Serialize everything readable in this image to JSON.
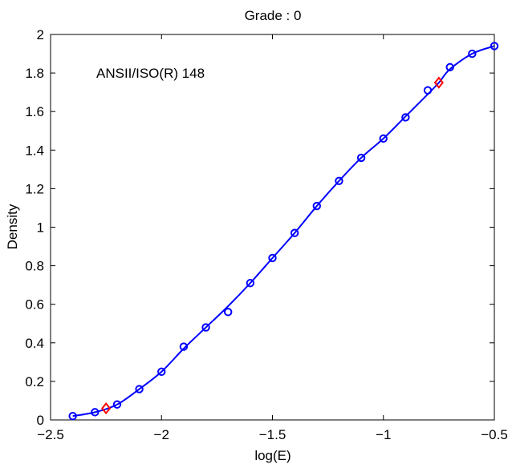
{
  "chart_data": {
    "type": "line",
    "title": "Grade : 0",
    "xlabel": "log(E)",
    "ylabel": "Density",
    "annotation": "ANSII/ISO(R) 148",
    "xlim": [
      -2.5,
      -0.5
    ],
    "ylim": [
      0,
      2
    ],
    "xticks": [
      -2.5,
      -2,
      -1.5,
      -1,
      -0.5
    ],
    "xtick_labels": [
      "−2.5",
      "−2",
      "−1.5",
      "−1",
      "−0.5"
    ],
    "yticks": [
      0,
      0.2,
      0.4,
      0.6,
      0.8,
      1,
      1.2,
      1.4,
      1.6,
      1.8,
      2
    ],
    "ytick_labels": [
      "0",
      "0.2",
      "0.4",
      "0.6",
      "0.8",
      "1",
      "1.2",
      "1.4",
      "1.6",
      "1.8",
      "2"
    ],
    "grid": false,
    "colors": {
      "curve": "#0000ff",
      "points": "#0000ff",
      "markers": "#ff0000"
    },
    "series": [
      {
        "style": "line",
        "x": [
          -2.4,
          -2.3,
          -2.2,
          -2.1,
          -2.0,
          -1.9,
          -1.8,
          -1.7,
          -1.6,
          -1.5,
          -1.4,
          -1.3,
          -1.2,
          -1.1,
          -1.0,
          -0.9,
          -0.8,
          -0.75,
          -0.7,
          -0.6,
          -0.5
        ],
        "y": [
          0.02,
          0.04,
          0.08,
          0.16,
          0.25,
          0.37,
          0.48,
          0.59,
          0.71,
          0.84,
          0.97,
          1.11,
          1.24,
          1.36,
          1.46,
          1.575,
          1.69,
          1.75,
          1.82,
          1.9,
          1.94
        ]
      },
      {
        "style": "circle-markers",
        "x": [
          -2.4,
          -2.3,
          -2.2,
          -2.1,
          -2.0,
          -1.9,
          -1.8,
          -1.7,
          -1.6,
          -1.5,
          -1.4,
          -1.3,
          -1.2,
          -1.1,
          -1.0,
          -0.9,
          -0.8,
          -0.7,
          -0.6,
          -0.5
        ],
        "y": [
          0.02,
          0.04,
          0.08,
          0.16,
          0.25,
          0.38,
          0.48,
          0.56,
          0.71,
          0.84,
          0.97,
          1.11,
          1.24,
          1.36,
          1.46,
          1.57,
          1.71,
          1.83,
          1.9,
          1.94
        ]
      },
      {
        "style": "diamond-markers",
        "x": [
          -2.25,
          -0.75
        ],
        "y": [
          0.06,
          1.75
        ]
      }
    ]
  }
}
